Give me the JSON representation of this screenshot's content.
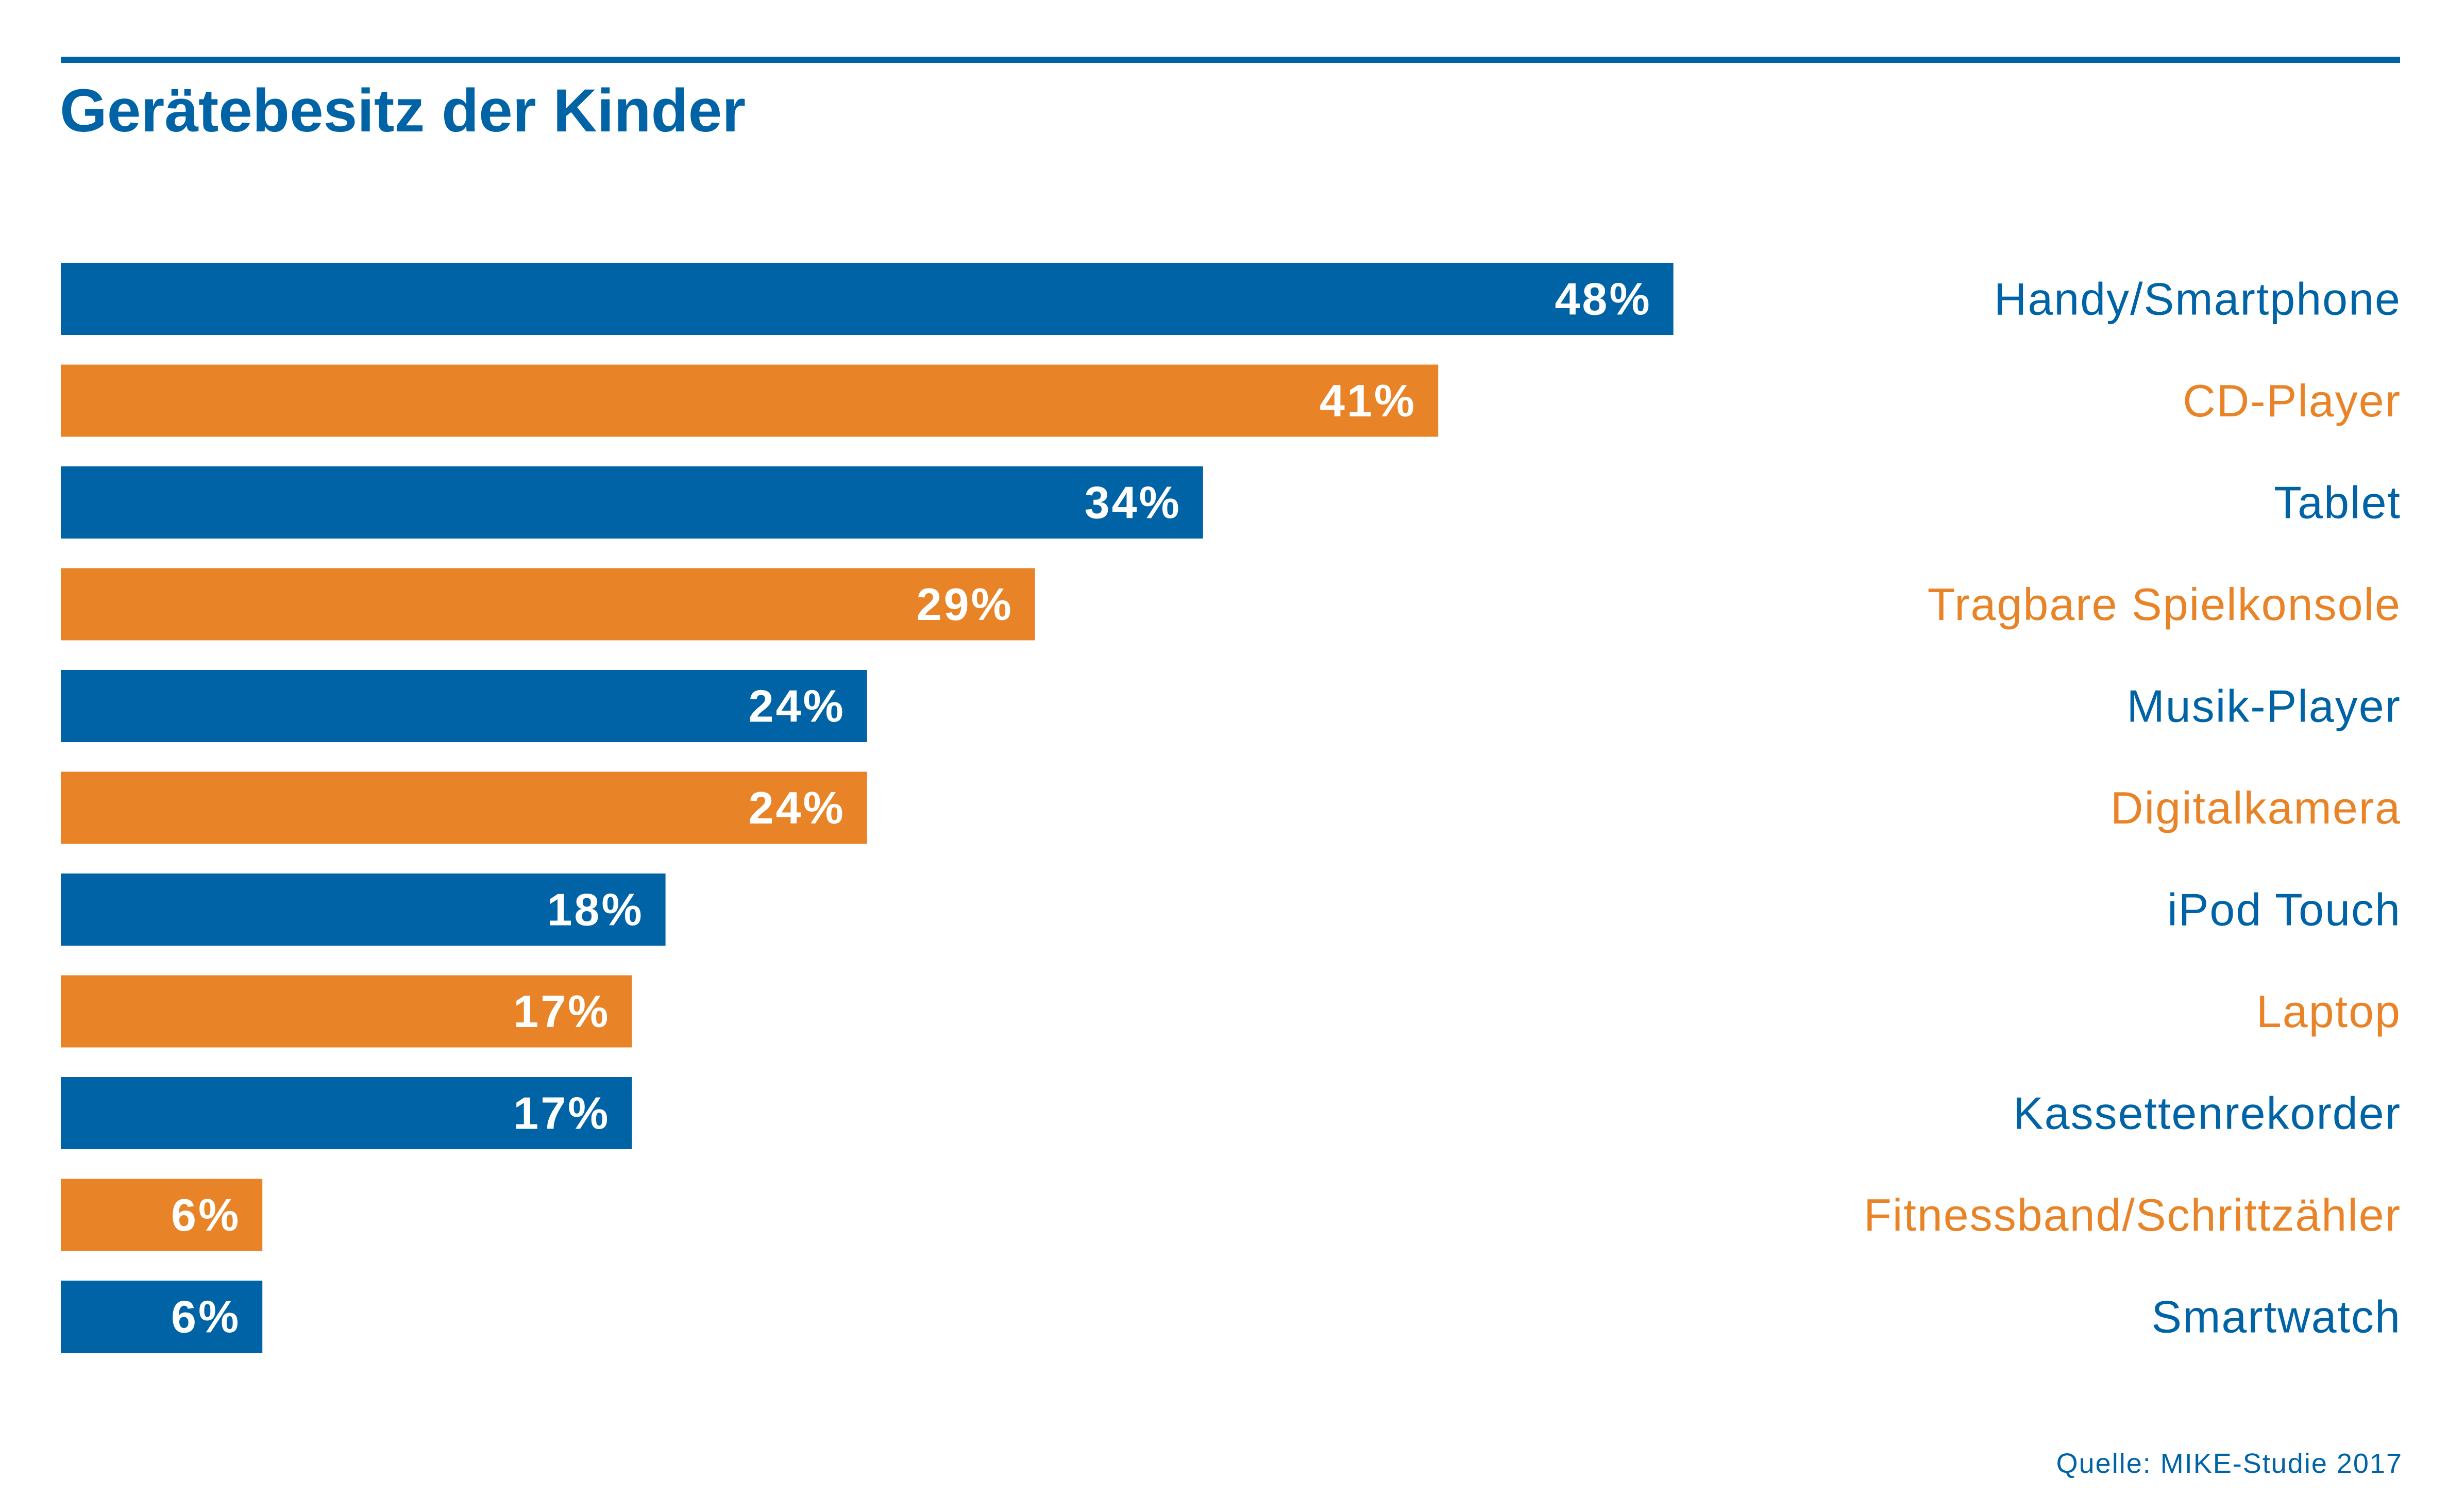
{
  "title": "Gerätebesitz der Kinder",
  "source": "Quelle: MIKE-Studie 2017",
  "colors": {
    "blue": "#0063a6",
    "orange": "#e88427",
    "bar_label": "#ffffff"
  },
  "chart_data": {
    "type": "bar",
    "orientation": "horizontal",
    "title": "Gerätebesitz der Kinder",
    "unit": "%",
    "categories": [
      "Handy/Smartphone",
      "CD-Player",
      "Tablet",
      "Tragbare Spielkonsole",
      "Musik-Player",
      "Digitalkamera",
      "iPod Touch",
      "Laptop",
      "Kassettenrekorder",
      "Fitnessband/Schrittzähler",
      "Smartwatch"
    ],
    "values": [
      48,
      41,
      34,
      29,
      24,
      24,
      18,
      17,
      17,
      6,
      6
    ],
    "value_labels": [
      "48%",
      "41%",
      "34%",
      "29%",
      "24%",
      "24%",
      "18%",
      "17%",
      "17%",
      "6%",
      "6%"
    ],
    "bar_colors": [
      "#0063a6",
      "#e88427",
      "#0063a6",
      "#e88427",
      "#0063a6",
      "#e88427",
      "#0063a6",
      "#e88427",
      "#0063a6",
      "#e88427",
      "#0063a6"
    ],
    "category_label_position": "right",
    "grid": false,
    "legend": "none"
  }
}
